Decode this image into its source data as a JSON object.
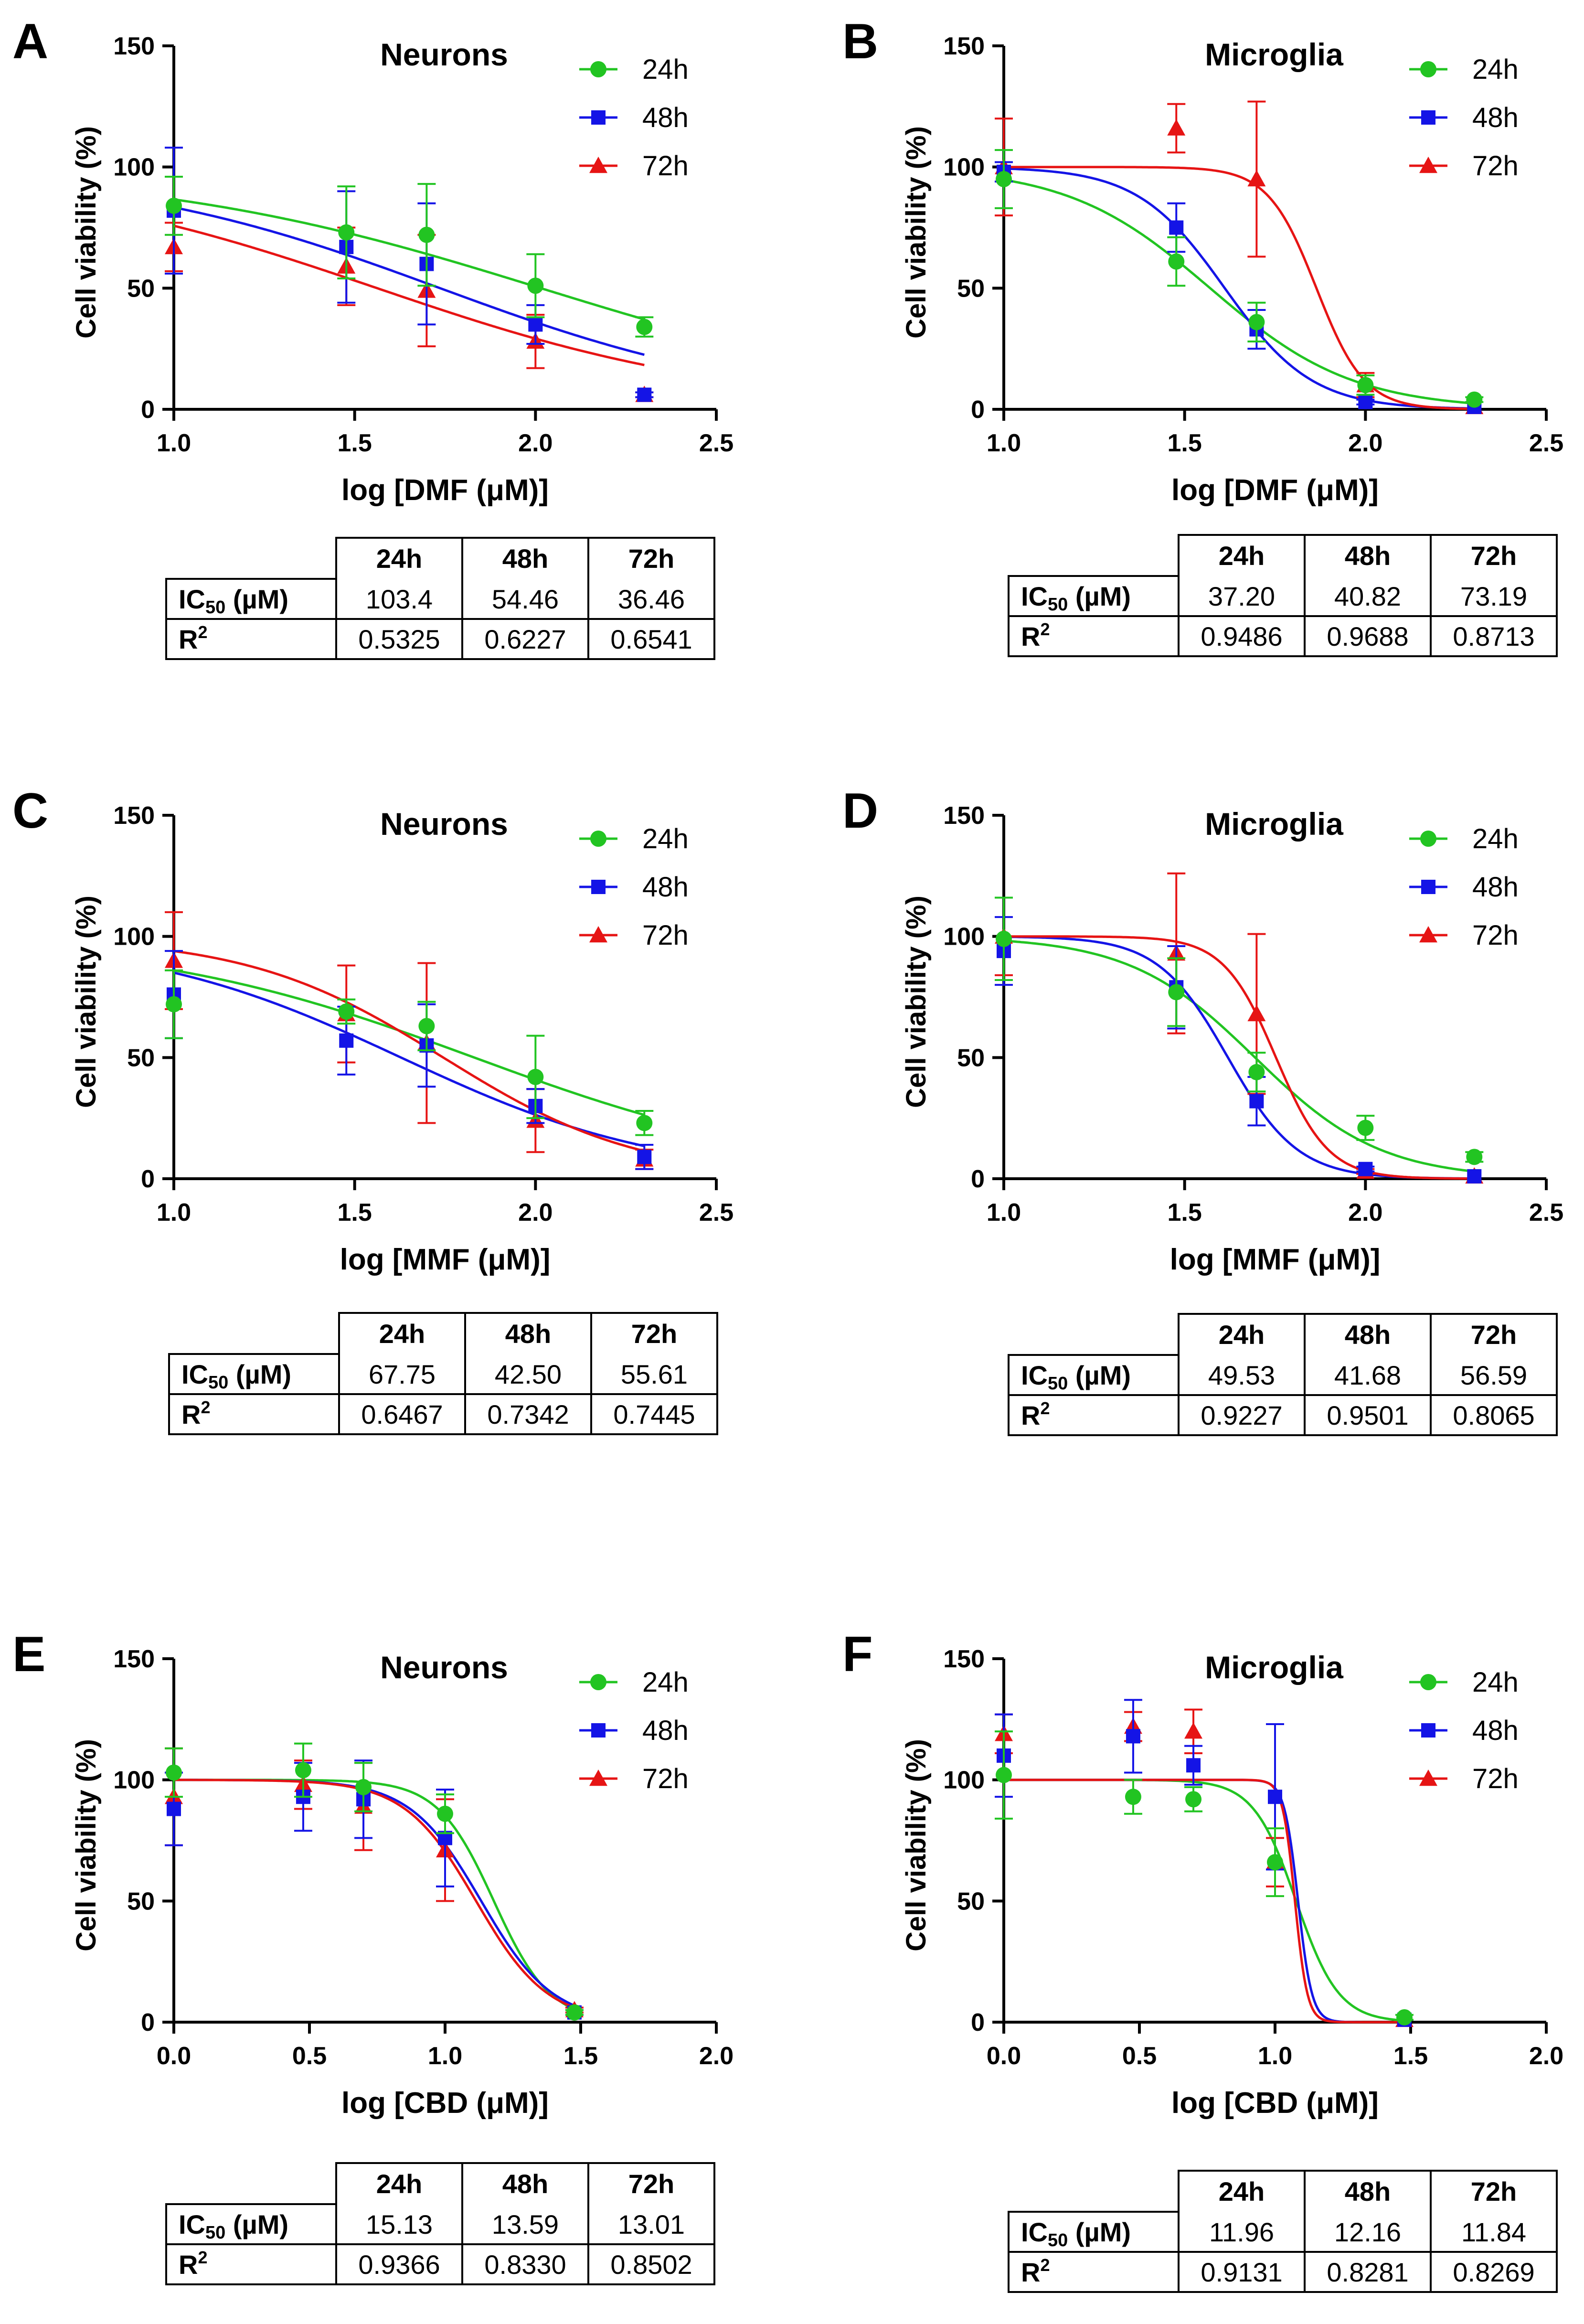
{
  "colors": {
    "24h": "#22c422",
    "48h": "#1414e6",
    "72h": "#e61414",
    "axis": "#000000"
  },
  "legend_labels": [
    "24h",
    "48h",
    "72h"
  ],
  "ylabel": "Cell viability (%)",
  "table_header": [
    "24h",
    "48h",
    "72h"
  ],
  "row_ic50": {
    "main": "IC",
    "sub": "50",
    "unit": " (µM)"
  },
  "row_r2": {
    "main": "R",
    "sup": "2"
  },
  "chart_data": [
    {
      "letter": "A",
      "type": "scatter",
      "title": "Neurons",
      "xlabel": "log [DMF (μM)]",
      "ylabel": "Cell viability (%)",
      "xlim": [
        1.0,
        2.5
      ],
      "ylim": [
        0,
        150
      ],
      "xticks": [
        "1.0",
        "1.5",
        "2.0",
        "2.5"
      ],
      "yticks": [
        "0",
        "50",
        "100",
        "150"
      ],
      "x": [
        1.0,
        1.477,
        1.699,
        2.0,
        2.301
      ],
      "series": [
        {
          "name": "24h",
          "values": [
            84,
            73,
            72,
            51,
            34
          ],
          "errors": [
            12,
            19,
            21,
            13,
            4
          ],
          "fit": {
            "top": 100,
            "bottom": 0,
            "logIC50": 2.0145,
            "hill": -0.8
          }
        },
        {
          "name": "48h",
          "values": [
            82,
            67,
            60,
            35,
            6
          ],
          "errors": [
            26,
            23,
            25,
            8,
            1
          ],
          "fit": {
            "top": 100,
            "bottom": 0,
            "logIC50": 1.736,
            "hill": -0.95
          }
        },
        {
          "name": "72h",
          "values": [
            67,
            59,
            49,
            28,
            6
          ],
          "errors": [
            10,
            16,
            23,
            11,
            1
          ],
          "fit": {
            "top": 100,
            "bottom": 0,
            "logIC50": 1.562,
            "hill": -0.88
          }
        }
      ],
      "table": {
        "ic50": [
          "103.4",
          "54.46",
          "36.46"
        ],
        "r2": [
          "0.5325",
          "0.6227",
          "0.6541"
        ]
      }
    },
    {
      "letter": "B",
      "type": "scatter",
      "title": "Microglia",
      "xlabel": "log [DMF (μM)]",
      "ylabel": "Cell viability (%)",
      "xlim": [
        1.0,
        2.5
      ],
      "ylim": [
        0,
        150
      ],
      "xticks": [
        "1.0",
        "1.5",
        "2.0",
        "2.5"
      ],
      "yticks": [
        "0",
        "50",
        "100",
        "150"
      ],
      "x": [
        1.0,
        1.477,
        1.699,
        2.0,
        2.301
      ],
      "series": [
        {
          "name": "24h",
          "values": [
            95,
            61,
            36,
            10,
            4
          ],
          "errors": [
            12,
            10,
            8,
            4,
            1
          ],
          "fit": {
            "top": 100,
            "bottom": 0,
            "logIC50": 1.5705,
            "hill": -2.2
          }
        },
        {
          "name": "48h",
          "values": [
            98,
            75,
            33,
            3,
            1
          ],
          "errors": [
            4,
            10,
            8,
            1,
            0.5
          ],
          "fit": {
            "top": 100,
            "bottom": 0,
            "logIC50": 1.611,
            "hill": -3.6
          }
        },
        {
          "name": "72h",
          "values": [
            100,
            116,
            95,
            10,
            1
          ],
          "errors": [
            20,
            10,
            32,
            5,
            0.5
          ],
          "fit": {
            "top": 100,
            "bottom": 0,
            "logIC50": 1.8644,
            "hill": -6.5
          }
        }
      ],
      "table": {
        "ic50": [
          "37.20",
          "40.82",
          "73.19"
        ],
        "r2": [
          "0.9486",
          "0.9688",
          "0.8713"
        ]
      }
    },
    {
      "letter": "C",
      "type": "scatter",
      "title": "Neurons",
      "xlabel": "log [MMF (μM)]",
      "ylabel": "Cell viability (%)",
      "xlim": [
        1.0,
        2.5
      ],
      "ylim": [
        0,
        150
      ],
      "xticks": [
        "1.0",
        "1.5",
        "2.0",
        "2.5"
      ],
      "yticks": [
        "0",
        "50",
        "100",
        "150"
      ],
      "x": [
        1.0,
        1.477,
        1.699,
        2.0,
        2.301
      ],
      "series": [
        {
          "name": "24h",
          "values": [
            72,
            69,
            63,
            42,
            23
          ],
          "errors": [
            14,
            5,
            10,
            17,
            5
          ],
          "fit": {
            "top": 100,
            "bottom": 0,
            "logIC50": 1.8309,
            "hill": -0.95
          }
        },
        {
          "name": "48h",
          "values": [
            76,
            57,
            55,
            30,
            9
          ],
          "errors": [
            18,
            14,
            17,
            7,
            5
          ],
          "fit": {
            "top": 100,
            "bottom": 0,
            "logIC50": 1.6284,
            "hill": -1.2
          }
        },
        {
          "name": "72h",
          "values": [
            90,
            68,
            56,
            24,
            8
          ],
          "errors": [
            20,
            20,
            33,
            13,
            4
          ],
          "fit": {
            "top": 100,
            "bottom": 0,
            "logIC50": 1.7452,
            "hill": -1.6
          }
        }
      ],
      "table": {
        "ic50": [
          "67.75",
          "42.50",
          "55.61"
        ],
        "r2": [
          "0.6467",
          "0.7342",
          "0.7445"
        ]
      }
    },
    {
      "letter": "D",
      "type": "scatter",
      "title": "Microglia",
      "xlabel": "log [MMF (μM)]",
      "ylabel": "Cell viability (%)",
      "xlim": [
        1.0,
        2.5
      ],
      "ylim": [
        0,
        150
      ],
      "xticks": [
        "1.0",
        "1.5",
        "2.0",
        "2.5"
      ],
      "yticks": [
        "0",
        "50",
        "100",
        "150"
      ],
      "x": [
        1.0,
        1.477,
        1.699,
        2.0,
        2.301
      ],
      "series": [
        {
          "name": "24h",
          "values": [
            99,
            77,
            44,
            21,
            9
          ],
          "errors": [
            17,
            14,
            8,
            5,
            2
          ],
          "fit": {
            "top": 100,
            "bottom": 0,
            "logIC50": 1.6949,
            "hill": -2.5
          }
        },
        {
          "name": "48h",
          "values": [
            94,
            79,
            32,
            4,
            1
          ],
          "errors": [
            14,
            17,
            10,
            1,
            0.5
          ],
          "fit": {
            "top": 100,
            "bottom": 0,
            "logIC50": 1.6199,
            "hill": -4.5
          }
        },
        {
          "name": "72h",
          "values": [
            100,
            93,
            68,
            3,
            1
          ],
          "errors": [
            16,
            33,
            33,
            1,
            0.5
          ],
          "fit": {
            "top": 100,
            "bottom": 0,
            "logIC50": 1.7527,
            "hill": -6.0
          }
        }
      ],
      "table": {
        "ic50": [
          "49.53",
          "41.68",
          "56.59"
        ],
        "r2": [
          "0.9227",
          "0.9501",
          "0.8065"
        ]
      }
    },
    {
      "letter": "E",
      "type": "scatter",
      "title": "Neurons",
      "xlabel": "log [CBD (μM)]",
      "ylabel": "Cell viability (%)",
      "xlim": [
        0.0,
        2.0
      ],
      "ylim": [
        0,
        150
      ],
      "xticks": [
        "0.0",
        "0.5",
        "1.0",
        "1.5",
        "2.0"
      ],
      "yticks": [
        "0",
        "50",
        "100",
        "150"
      ],
      "x": [
        0.0,
        0.477,
        0.699,
        1.0,
        1.477
      ],
      "series": [
        {
          "name": "24h",
          "values": [
            103,
            104,
            97,
            86,
            4
          ],
          "errors": [
            10,
            11,
            10,
            8,
            1
          ],
          "fit": {
            "top": 100,
            "bottom": 0,
            "logIC50": 1.1798,
            "hill": -4.2
          }
        },
        {
          "name": "48h",
          "values": [
            88,
            93,
            92,
            76,
            4
          ],
          "errors": [
            15,
            14,
            16,
            20,
            1
          ],
          "fit": {
            "top": 100,
            "bottom": 0,
            "logIC50": 1.1332,
            "hill": -3.3
          }
        },
        {
          "name": "72h",
          "values": [
            93,
            98,
            89,
            71,
            5
          ],
          "errors": [
            20,
            10,
            18,
            21,
            1
          ],
          "fit": {
            "top": 100,
            "bottom": 0,
            "logIC50": 1.1143,
            "hill": -3.3
          }
        }
      ],
      "table": {
        "ic50": [
          "15.13",
          "13.59",
          "13.01"
        ],
        "r2": [
          "0.9366",
          "0.8330",
          "0.8502"
        ]
      }
    },
    {
      "letter": "F",
      "type": "scatter",
      "title": "Microglia",
      "xlabel": "log [CBD (μM)]",
      "ylabel": "Cell viability (%)",
      "xlim": [
        0.0,
        2.0
      ],
      "ylim": [
        0,
        150
      ],
      "xticks": [
        "0.0",
        "0.5",
        "1.0",
        "1.5",
        "2.0"
      ],
      "yticks": [
        "0",
        "50",
        "100",
        "150"
      ],
      "x": [
        0.0,
        0.477,
        0.699,
        1.0,
        1.477
      ],
      "series": [
        {
          "name": "24h",
          "values": [
            102,
            93,
            92,
            66,
            2
          ],
          "errors": [
            18,
            7,
            5,
            14,
            1
          ],
          "fit": {
            "top": 100,
            "bottom": 0,
            "logIC50": 1.0778,
            "hill": -5.5
          }
        },
        {
          "name": "48h",
          "values": [
            110,
            118,
            106,
            93,
            1
          ],
          "errors": [
            17,
            15,
            8,
            30,
            0.5
          ],
          "fit": {
            "top": 100,
            "bottom": 0,
            "logIC50": 1.085,
            "hill": -17
          }
        },
        {
          "name": "72h",
          "values": [
            119,
            122,
            120,
            66,
            1
          ],
          "errors": [
            8,
            6,
            9,
            10,
            0.5
          ],
          "fit": {
            "top": 100,
            "bottom": 0,
            "logIC50": 1.0734,
            "hill": -19
          }
        }
      ],
      "table": {
        "ic50": [
          "11.96",
          "12.16",
          "11.84"
        ],
        "r2": [
          "0.9131",
          "0.8281",
          "0.8269"
        ]
      }
    }
  ]
}
